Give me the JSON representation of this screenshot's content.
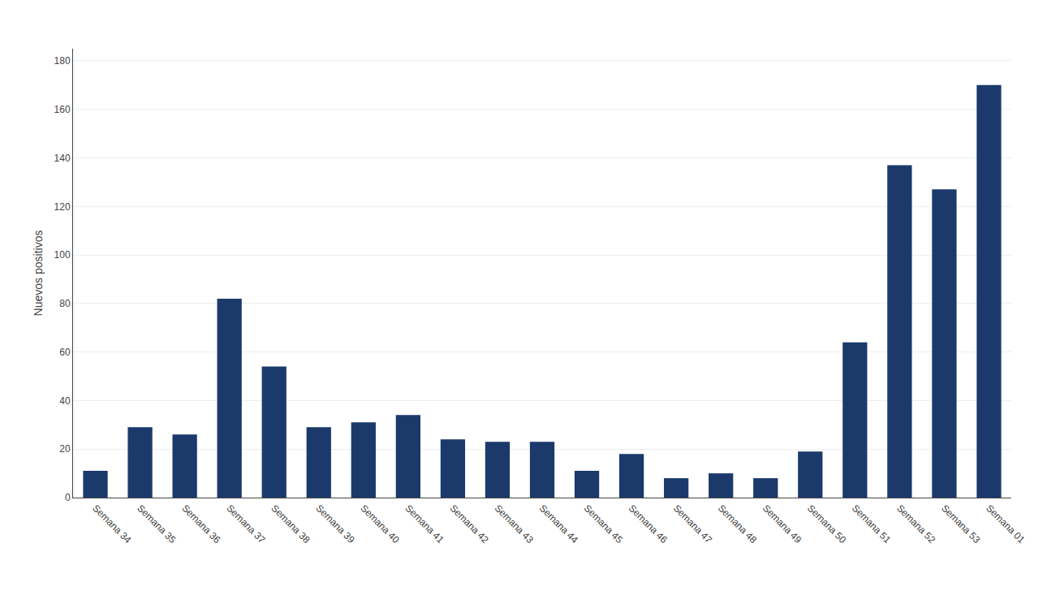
{
  "chart_data": {
    "type": "bar",
    "categories": [
      "Semana 34",
      "Semana 35",
      "Semana 36",
      "Semana 37",
      "Semana 38",
      "Semana 39",
      "Semana 40",
      "Semana 41",
      "Semana 42",
      "Semana 43",
      "Semana 44",
      "Semana 45",
      "Semana 46",
      "Semana 47",
      "Semana 48",
      "Semana 49",
      "Semana 50",
      "Semana 51",
      "Semana 52",
      "Semana 53",
      "Semana 01"
    ],
    "values": [
      11,
      29,
      26,
      82,
      54,
      29,
      31,
      34,
      24,
      23,
      23,
      11,
      18,
      8,
      10,
      8,
      19,
      64,
      137,
      127,
      170
    ],
    "color": "#1b3a6b",
    "ylabel": "Nuevos positivos",
    "ylim": [
      0,
      185
    ],
    "yticks": [
      0,
      20,
      40,
      60,
      80,
      100,
      120,
      140,
      160,
      180
    ],
    "grid": true
  }
}
